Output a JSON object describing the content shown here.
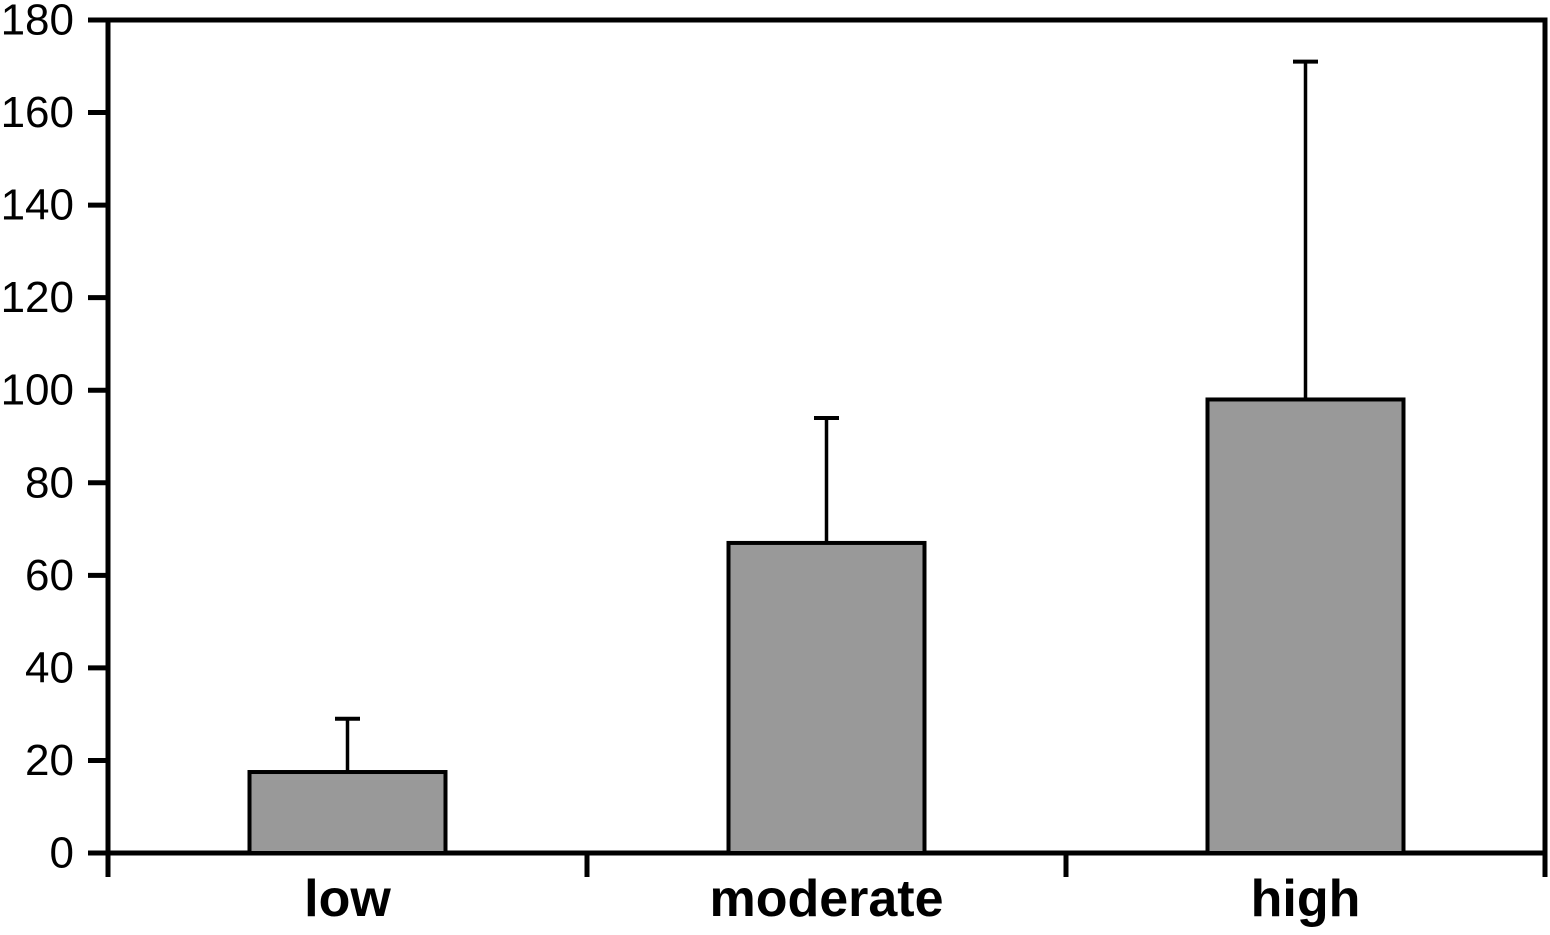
{
  "chart_data": {
    "type": "bar",
    "title": "",
    "xlabel": "",
    "ylabel": "",
    "categories": [
      "low",
      "moderate",
      "high"
    ],
    "values": [
      17.5,
      67,
      98
    ],
    "error_top": [
      29,
      94,
      171
    ],
    "error_bars": "upper-only",
    "ylim": [
      0,
      180
    ],
    "ytick_step": 20,
    "yticks": [
      0,
      20,
      40,
      60,
      80,
      100,
      120,
      140,
      160,
      180
    ],
    "grid": false,
    "legend": false,
    "colors": {
      "bar_fill": "#999999",
      "bar_stroke": "#000000",
      "axis": "#000000",
      "text": "#000000",
      "background": "#ffffff"
    }
  }
}
